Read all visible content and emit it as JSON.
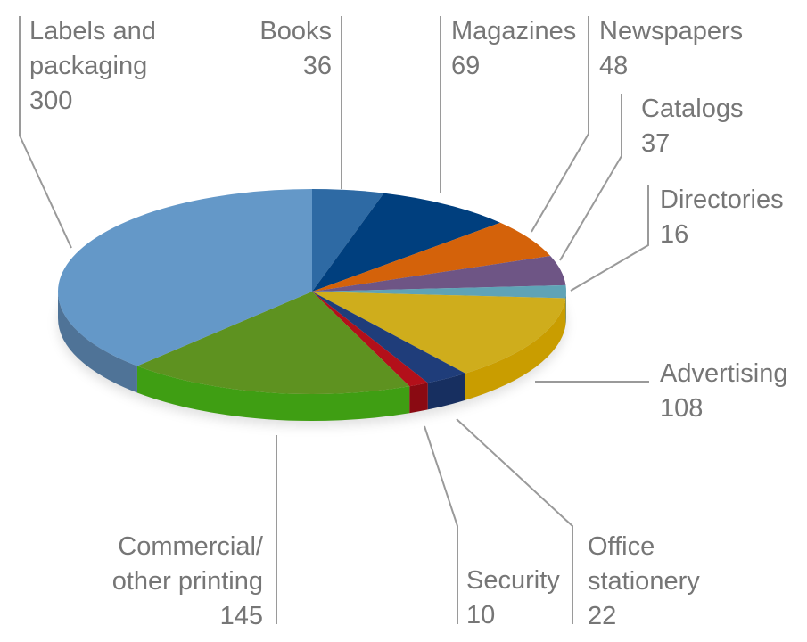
{
  "chart_data": {
    "type": "pie",
    "title": "",
    "slices": [
      {
        "lines": [
          "Books"
        ],
        "value": 36,
        "color": "#2e6aa4",
        "side": "#1f4e7b"
      },
      {
        "lines": [
          "Magazines"
        ],
        "value": 69,
        "color": "#003f7e",
        "side": "#002d5c"
      },
      {
        "lines": [
          "Newspapers"
        ],
        "value": 48,
        "color": "#d4620a",
        "side": "#a24a06"
      },
      {
        "lines": [
          "Catalogs"
        ],
        "value": 37,
        "color": "#6e5585",
        "side": "#523f64"
      },
      {
        "lines": [
          "Directories"
        ],
        "value": 16,
        "color": "#5fa3b6",
        "side": "#467d8c"
      },
      {
        "lines": [
          "Advertising"
        ],
        "value": 108,
        "color": "#cfad1c",
        "side": "#c99d00"
      },
      {
        "lines": [
          "Office",
          "stationery"
        ],
        "value": 22,
        "color": "#1f3d7a",
        "side": "#172f60"
      },
      {
        "lines": [
          "Security"
        ],
        "value": 10,
        "color": "#b3101a",
        "side": "#8a0a12"
      },
      {
        "lines": [
          "Commercial/",
          "other printing"
        ],
        "value": 145,
        "color": "#5e9220",
        "side": "#3f9e13"
      },
      {
        "lines": [
          "Labels and",
          "packaging"
        ],
        "value": 300,
        "color": "#6498c8",
        "side": "#4f7397"
      }
    ]
  }
}
